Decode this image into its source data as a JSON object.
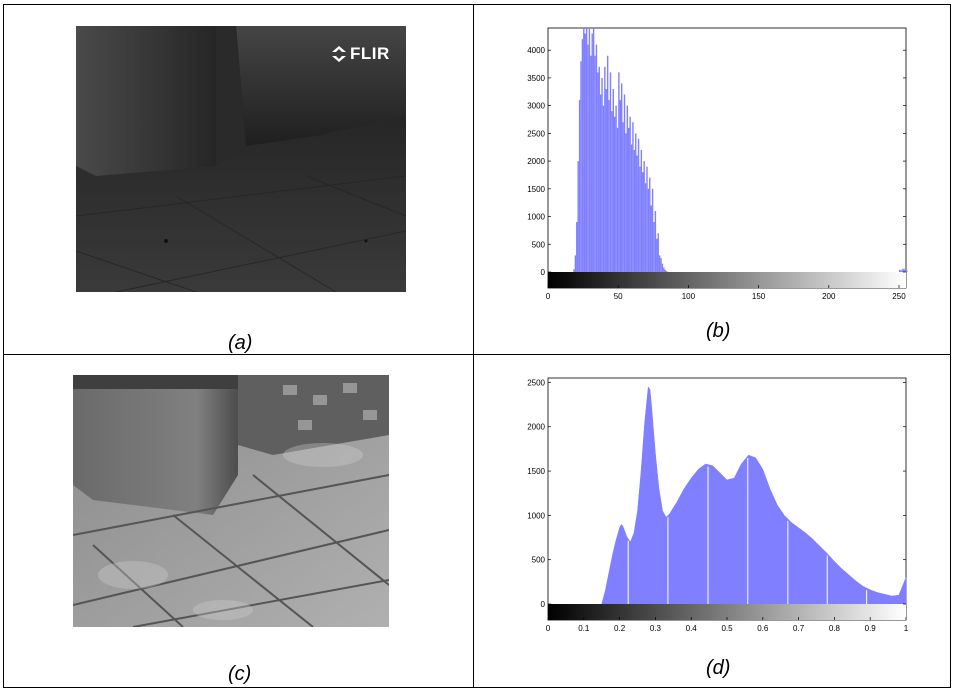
{
  "captions": {
    "a": "(a)",
    "b": "(b)",
    "c": "(c)",
    "d": "(d)"
  },
  "thermal_image": {
    "logo_text": "FLIR"
  },
  "colors": {
    "bar_fill": "#7f7fff",
    "axis": "#000000",
    "frame": "#000000"
  },
  "chart_data": [
    {
      "type": "bar",
      "panel": "(b)",
      "title": "",
      "xlabel": "",
      "ylabel": "",
      "xlim": [
        0,
        255
      ],
      "ylim": [
        0,
        4400
      ],
      "x_ticks": [
        0,
        50,
        100,
        150,
        200,
        250
      ],
      "y_ticks": [
        0,
        500,
        1000,
        1500,
        2000,
        2500,
        3000,
        3500,
        4000
      ],
      "gradient_bar": {
        "from": "#000000",
        "to": "#ffffff"
      },
      "bins": [
        [
          18,
          50
        ],
        [
          19,
          300
        ],
        [
          20,
          900
        ],
        [
          21,
          2000
        ],
        [
          22,
          3100
        ],
        [
          23,
          3800
        ],
        [
          24,
          4200
        ],
        [
          25,
          4400
        ],
        [
          26,
          4300
        ],
        [
          27,
          4400
        ],
        [
          28,
          4100
        ],
        [
          29,
          4400
        ],
        [
          30,
          3900
        ],
        [
          31,
          4300
        ],
        [
          32,
          4400
        ],
        [
          33,
          3900
        ],
        [
          34,
          4100
        ],
        [
          35,
          3600
        ],
        [
          36,
          3700
        ],
        [
          37,
          3200
        ],
        [
          38,
          3500
        ],
        [
          39,
          3000
        ],
        [
          40,
          3700
        ],
        [
          41,
          3300
        ],
        [
          42,
          3900
        ],
        [
          43,
          3100
        ],
        [
          44,
          3600
        ],
        [
          45,
          2900
        ],
        [
          46,
          3300
        ],
        [
          47,
          2800
        ],
        [
          48,
          3000
        ],
        [
          49,
          2600
        ],
        [
          50,
          3600
        ],
        [
          51,
          3100
        ],
        [
          52,
          3400
        ],
        [
          53,
          2700
        ],
        [
          54,
          3200
        ],
        [
          55,
          2500
        ],
        [
          56,
          3000
        ],
        [
          57,
          2600
        ],
        [
          58,
          2800
        ],
        [
          59,
          2300
        ],
        [
          60,
          2700
        ],
        [
          61,
          2200
        ],
        [
          62,
          2500
        ],
        [
          63,
          2100
        ],
        [
          64,
          2400
        ],
        [
          65,
          1900
        ],
        [
          66,
          2200
        ],
        [
          67,
          1800
        ],
        [
          68,
          2000
        ],
        [
          69,
          1600
        ],
        [
          70,
          1900
        ],
        [
          71,
          1500
        ],
        [
          72,
          1700
        ],
        [
          73,
          1200
        ],
        [
          74,
          1500
        ],
        [
          75,
          900
        ],
        [
          76,
          1100
        ],
        [
          77,
          600
        ],
        [
          78,
          700
        ],
        [
          79,
          300
        ],
        [
          80,
          250
        ],
        [
          81,
          150
        ],
        [
          82,
          80
        ],
        [
          83,
          40
        ],
        [
          84,
          15
        ],
        [
          250,
          40
        ],
        [
          251,
          30
        ],
        [
          252,
          50
        ],
        [
          253,
          60
        ],
        [
          254,
          40
        ],
        [
          255,
          30
        ]
      ]
    },
    {
      "type": "bar",
      "panel": "(d)",
      "title": "",
      "xlabel": "",
      "ylabel": "",
      "xlim": [
        0,
        1
      ],
      "ylim": [
        0,
        2550
      ],
      "x_ticks": [
        0,
        0.1,
        0.2,
        0.3,
        0.4,
        0.5,
        0.6,
        0.7,
        0.8,
        0.9,
        1
      ],
      "y_ticks": [
        0,
        500,
        1000,
        1500,
        2000,
        2500
      ],
      "gradient_bar": {
        "from": "#000000",
        "to": "#ffffff"
      },
      "profile": [
        [
          0.15,
          0
        ],
        [
          0.16,
          150
        ],
        [
          0.17,
          350
        ],
        [
          0.18,
          550
        ],
        [
          0.19,
          720
        ],
        [
          0.2,
          860
        ],
        [
          0.205,
          900
        ],
        [
          0.21,
          870
        ],
        [
          0.22,
          760
        ],
        [
          0.23,
          700
        ],
        [
          0.24,
          800
        ],
        [
          0.25,
          1050
        ],
        [
          0.26,
          1500
        ],
        [
          0.27,
          2050
        ],
        [
          0.28,
          2450
        ],
        [
          0.285,
          2420
        ],
        [
          0.29,
          2200
        ],
        [
          0.3,
          1700
        ],
        [
          0.31,
          1300
        ],
        [
          0.32,
          1050
        ],
        [
          0.33,
          980
        ],
        [
          0.34,
          1020
        ],
        [
          0.36,
          1150
        ],
        [
          0.38,
          1300
        ],
        [
          0.4,
          1420
        ],
        [
          0.42,
          1520
        ],
        [
          0.44,
          1580
        ],
        [
          0.46,
          1560
        ],
        [
          0.48,
          1480
        ],
        [
          0.5,
          1400
        ],
        [
          0.52,
          1420
        ],
        [
          0.54,
          1580
        ],
        [
          0.56,
          1680
        ],
        [
          0.58,
          1650
        ],
        [
          0.6,
          1520
        ],
        [
          0.62,
          1300
        ],
        [
          0.64,
          1120
        ],
        [
          0.66,
          1000
        ],
        [
          0.68,
          920
        ],
        [
          0.7,
          860
        ],
        [
          0.72,
          800
        ],
        [
          0.74,
          730
        ],
        [
          0.76,
          650
        ],
        [
          0.78,
          570
        ],
        [
          0.8,
          480
        ],
        [
          0.82,
          400
        ],
        [
          0.84,
          330
        ],
        [
          0.86,
          260
        ],
        [
          0.88,
          200
        ],
        [
          0.9,
          160
        ],
        [
          0.92,
          130
        ],
        [
          0.94,
          110
        ],
        [
          0.96,
          90
        ],
        [
          0.98,
          100
        ],
        [
          0.99,
          200
        ],
        [
          1,
          300
        ]
      ]
    }
  ]
}
